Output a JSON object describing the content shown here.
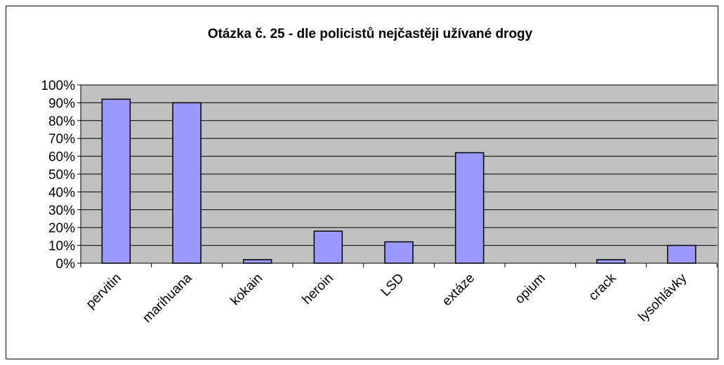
{
  "chart_data": {
    "type": "bar",
    "title": "Otázka č. 25 - dle policistů nejčastěji užívané drogy",
    "categories": [
      "pervitin",
      "marihuana",
      "kokain",
      "heroin",
      "LSD",
      "extáze",
      "opium",
      "crack",
      "lysohlávky"
    ],
    "values": [
      92,
      90,
      2,
      18,
      12,
      62,
      0,
      2,
      10
    ],
    "color": "#9999ff",
    "ylim": [
      0,
      100
    ],
    "yticks": [
      {
        "value": 0,
        "label": "0%"
      },
      {
        "value": 10,
        "label": "10%"
      },
      {
        "value": 20,
        "label": "20%"
      },
      {
        "value": 30,
        "label": "30%"
      },
      {
        "value": 40,
        "label": "40%"
      },
      {
        "value": 50,
        "label": "50%"
      },
      {
        "value": 60,
        "label": "60%"
      },
      {
        "value": 70,
        "label": "70%"
      },
      {
        "value": 80,
        "label": "80%"
      },
      {
        "value": 90,
        "label": "90%"
      },
      {
        "value": 100,
        "label": "100%"
      }
    ],
    "grid": true
  }
}
